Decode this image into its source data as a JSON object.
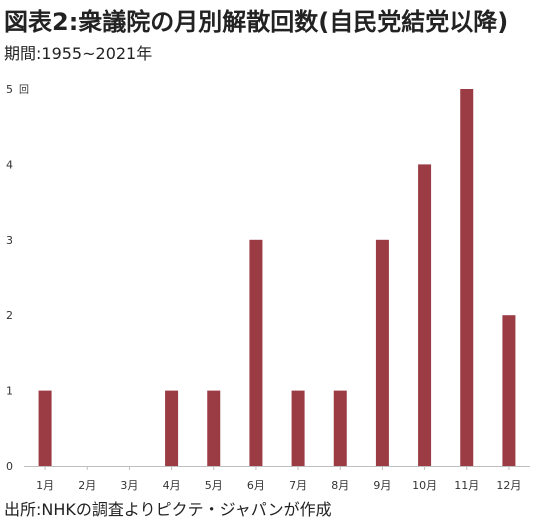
{
  "chart_data": {
    "type": "bar",
    "title": "図表2:衆議院の月別解散回数(自民党結党以降)",
    "subtitle": "期間:1955~2021年",
    "source": "出所:NHKの調査よりピクテ・ジャパンが作成",
    "y_unit_label": "回",
    "categories": [
      "1月",
      "2月",
      "3月",
      "4月",
      "5月",
      "6月",
      "7月",
      "8月",
      "9月",
      "10月",
      "11月",
      "12月"
    ],
    "values": [
      1,
      0,
      0,
      1,
      1,
      3,
      1,
      1,
      3,
      4,
      5,
      2
    ],
    "y_ticks": [
      0,
      1,
      2,
      3,
      4,
      5
    ],
    "ylim": [
      0,
      5
    ],
    "grid": false,
    "legend": "none",
    "bar_color": "#9b3b44",
    "axis_color": "#bfbfbf"
  }
}
